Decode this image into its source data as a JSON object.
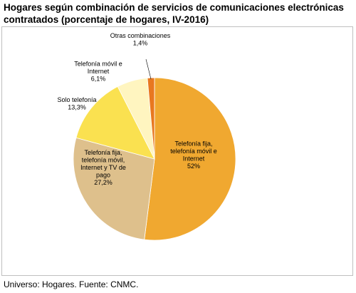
{
  "title_line1": "Hogares según combinación de servicios de comunicaciones electrónicas",
  "title_line2": "contratados (porcentaje de hogares, IV-2016)",
  "source": "Universo: Hogares. Fuente: CNMC.",
  "chart_data": {
    "type": "pie",
    "title": "Hogares según combinación de servicios de comunicaciones electrónicas contratados (porcentaje de hogares, IV-2016)",
    "slices": [
      {
        "label_lines": [
          "Telefonía fija,",
          "telefonía móvil e",
          "Internet"
        ],
        "value_text": "52%",
        "value": 52.0,
        "color": "#F0A830"
      },
      {
        "label_lines": [
          "Telefonía fija,",
          "telefonía móvil,",
          "Internet y TV de",
          "pago"
        ],
        "value_text": "27,2%",
        "value": 27.2,
        "color": "#DEC08C"
      },
      {
        "label_lines": [
          "Solo telefonía"
        ],
        "value_text": "13,3%",
        "value": 13.3,
        "color": "#FAE150"
      },
      {
        "label_lines": [
          "Telefonía móvil e",
          "Internet"
        ],
        "value_text": "6,1%",
        "value": 6.1,
        "color": "#FFF5C0"
      },
      {
        "label_lines": [
          "Otras combinaciones"
        ],
        "value_text": "1,4%",
        "value": 1.4,
        "color": "#E87820"
      }
    ]
  }
}
